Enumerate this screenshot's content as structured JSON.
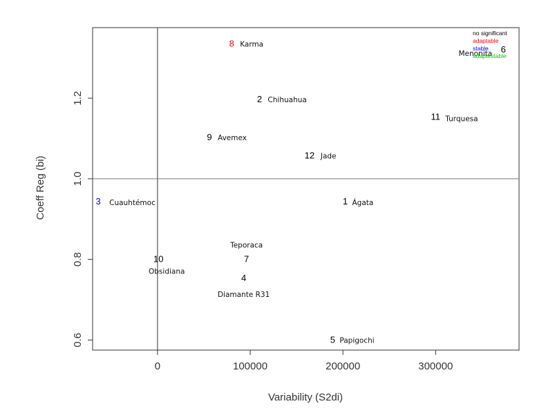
{
  "chart_data": {
    "type": "scatter",
    "title": "",
    "xlabel": "Variability (S2di)",
    "ylabel": "Coeff Reg (bi)",
    "xlim": [
      -70000,
      390000
    ],
    "ylim": [
      0.575,
      1.375
    ],
    "x_ticks": [
      0,
      100000,
      200000,
      300000
    ],
    "x_tick_labels": [
      "0",
      "100000",
      "200000",
      "300000"
    ],
    "y_ticks": [
      0.6,
      0.8,
      1.0,
      1.2
    ],
    "y_tick_labels": [
      "0.6",
      "0.8",
      "1.0",
      "1.2"
    ],
    "reference_lines": {
      "x": 0,
      "y": 1.0
    },
    "grid": false,
    "legend_position": "top-right",
    "legend": [
      {
        "label": "no significant",
        "color": "#000000"
      },
      {
        "label": "adaptable",
        "color": "#ff0000"
      },
      {
        "label": "stable",
        "color": "#0000ff"
      },
      {
        "label": "adaptestable",
        "color": "#00cc00"
      }
    ],
    "points": [
      {
        "id": "1",
        "name": "Ágata",
        "x": 198000,
        "y": 0.943,
        "color": "#000000"
      },
      {
        "id": "2",
        "name": "Chihuahua",
        "x": 110000,
        "y": 1.197,
        "color": "#000000"
      },
      {
        "id": "3",
        "name": "Cuauhtémoc",
        "x": -55000,
        "y": 0.943,
        "color": "#0000ff"
      },
      {
        "id": "4",
        "name": "Diamante R31",
        "x": 93000,
        "y": 0.753,
        "color": "#000000"
      },
      {
        "id": "5",
        "name": "Papigochi",
        "x": 189000,
        "y": 0.6,
        "color": "#000000"
      },
      {
        "id": "6",
        "name": "Menonita",
        "x": 373000,
        "y": 1.32,
        "color": "#000000"
      },
      {
        "id": "7",
        "name": "Teporaca",
        "x": 96000,
        "y": 0.8,
        "color": "#000000"
      },
      {
        "id": "8",
        "name": "Karma",
        "x": 80000,
        "y": 1.335,
        "color": "#ff0000"
      },
      {
        "id": "9",
        "name": "Avemex",
        "x": 56000,
        "y": 1.103,
        "color": "#000000"
      },
      {
        "id": "10",
        "name": "Obsidiana",
        "x": 1000,
        "y": 0.8,
        "color": "#000000"
      },
      {
        "id": "11",
        "name": "Turquesa",
        "x": 300000,
        "y": 1.153,
        "color": "#000000"
      },
      {
        "id": "12",
        "name": "Jade",
        "x": 164000,
        "y": 1.057,
        "color": "#000000"
      }
    ]
  }
}
